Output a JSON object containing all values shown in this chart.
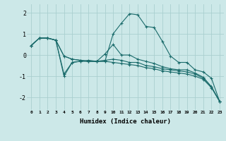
{
  "xlabel": "Humidex (Indice chaleur)",
  "ylabel": "",
  "bg_color": "#cce8e8",
  "grid_color": "#aacfcf",
  "line_color": "#1a6b6b",
  "xlim": [
    -0.5,
    23.5
  ],
  "ylim": [
    -2.6,
    2.4
  ],
  "yticks": [
    -2,
    -1,
    0,
    1,
    2
  ],
  "xticks": [
    0,
    1,
    2,
    3,
    4,
    5,
    6,
    7,
    8,
    9,
    10,
    11,
    12,
    13,
    14,
    15,
    16,
    17,
    18,
    19,
    20,
    21,
    22,
    23
  ],
  "series": [
    [
      0.45,
      0.8,
      0.8,
      0.7,
      -0.05,
      -0.2,
      -0.25,
      -0.3,
      -0.3,
      -0.3,
      1.0,
      1.5,
      1.95,
      1.9,
      1.35,
      1.3,
      0.65,
      -0.05,
      -0.35,
      -0.35,
      -0.7,
      -0.8,
      -1.1,
      -2.2
    ],
    [
      0.45,
      0.8,
      0.8,
      0.7,
      -1.0,
      -0.35,
      -0.3,
      -0.25,
      -0.3,
      0.05,
      0.5,
      0.0,
      0.0,
      -0.2,
      -0.3,
      -0.4,
      -0.55,
      -0.65,
      -0.7,
      -0.7,
      -0.85,
      -1.05,
      -1.5,
      -2.2
    ],
    [
      0.45,
      0.8,
      0.8,
      0.7,
      -0.9,
      -0.35,
      -0.3,
      -0.3,
      -0.3,
      -0.25,
      -0.2,
      -0.25,
      -0.35,
      -0.35,
      -0.5,
      -0.55,
      -0.65,
      -0.7,
      -0.75,
      -0.8,
      -0.9,
      -1.1,
      -1.5,
      -2.2
    ],
    [
      0.45,
      0.8,
      0.8,
      0.7,
      -0.05,
      -0.2,
      -0.25,
      -0.3,
      -0.3,
      -0.3,
      -0.35,
      -0.4,
      -0.45,
      -0.5,
      -0.6,
      -0.65,
      -0.75,
      -0.8,
      -0.85,
      -0.9,
      -1.0,
      -1.15,
      -1.55,
      -2.2
    ]
  ]
}
